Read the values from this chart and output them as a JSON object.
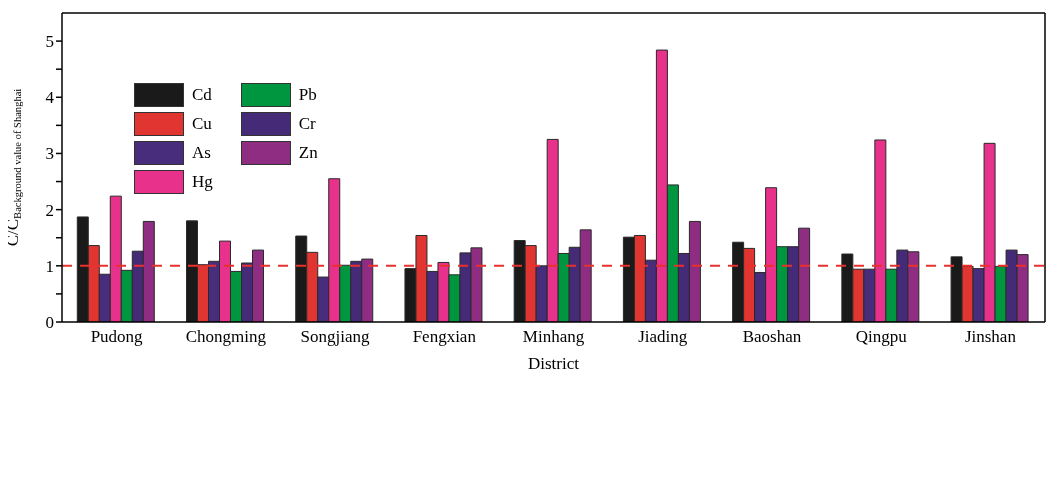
{
  "chart_data": {
    "type": "bar",
    "xlabel": "District",
    "ylabel": "C/C$_{Background value of Shanghai}$",
    "categories": [
      "Pudong",
      "Chongming",
      "Songjiang",
      "Fengxian",
      "Minhang",
      "Jiading",
      "Baoshan",
      "Qingpu",
      "Jinshan"
    ],
    "series": [
      {
        "name": "Cd",
        "color": "#1a1a1a",
        "values": [
          1.87,
          1.8,
          1.53,
          0.95,
          1.45,
          1.51,
          1.42,
          1.21,
          1.16
        ]
      },
      {
        "name": "Cu",
        "color": "#e03530",
        "values": [
          1.36,
          1.02,
          1.24,
          1.54,
          1.36,
          1.54,
          1.31,
          0.94,
          0.99
        ]
      },
      {
        "name": "As",
        "color": "#472d7b",
        "values": [
          0.85,
          1.08,
          0.8,
          0.9,
          1.0,
          1.1,
          0.88,
          0.94,
          0.95
        ]
      },
      {
        "name": "Hg",
        "color": "#e8318a",
        "values": [
          2.24,
          1.44,
          2.55,
          1.06,
          3.25,
          4.84,
          2.39,
          3.24,
          3.18
        ]
      },
      {
        "name": "Pb",
        "color": "#00963f",
        "values": [
          0.92,
          0.9,
          1.01,
          0.84,
          1.22,
          2.44,
          1.34,
          0.94,
          0.99
        ]
      },
      {
        "name": "Cr",
        "color": "#452a78",
        "values": [
          1.26,
          1.05,
          1.08,
          1.23,
          1.33,
          1.22,
          1.34,
          1.28,
          1.28
        ]
      },
      {
        "name": "Zn",
        "color": "#8e2d82",
        "values": [
          1.79,
          1.28,
          1.12,
          1.32,
          1.64,
          1.79,
          1.67,
          1.25,
          1.2
        ]
      }
    ],
    "ylim": [
      0,
      5.5
    ],
    "yticks": [
      0,
      {
        "value": 0.5,
        "label": null
      },
      1,
      {
        "value": 1.5,
        "label": null
      },
      2,
      {
        "value": 2.5,
        "label": null
      },
      3,
      {
        "value": 3.5,
        "label": null
      },
      4,
      {
        "value": 4.5,
        "label": null
      },
      5
    ],
    "ref_lines": [
      {
        "axis": "y",
        "value": 1,
        "color": "#e8312f",
        "line_style": "dashed"
      }
    ],
    "legend": "top left",
    "grid": false
  }
}
